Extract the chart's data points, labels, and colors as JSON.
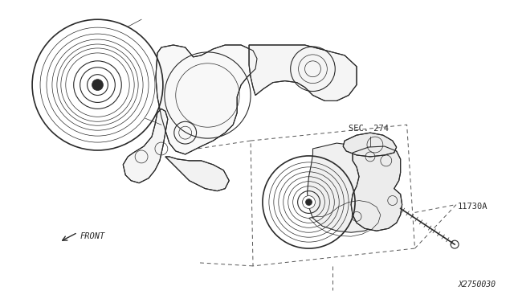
{
  "background_color": "#ffffff",
  "fig_width": 6.4,
  "fig_height": 3.72,
  "dpi": 100,
  "labels": {
    "sec274": "SEC. 274",
    "part_number": "11730A",
    "diagram_number": "X2750030",
    "front": "FRONT"
  },
  "colors": {
    "line": "#2a2a2a",
    "dash": "#555555",
    "light": "#666666"
  },
  "lw": {
    "thin": 0.5,
    "med": 0.8,
    "thick": 1.2,
    "bold": 1.6
  }
}
